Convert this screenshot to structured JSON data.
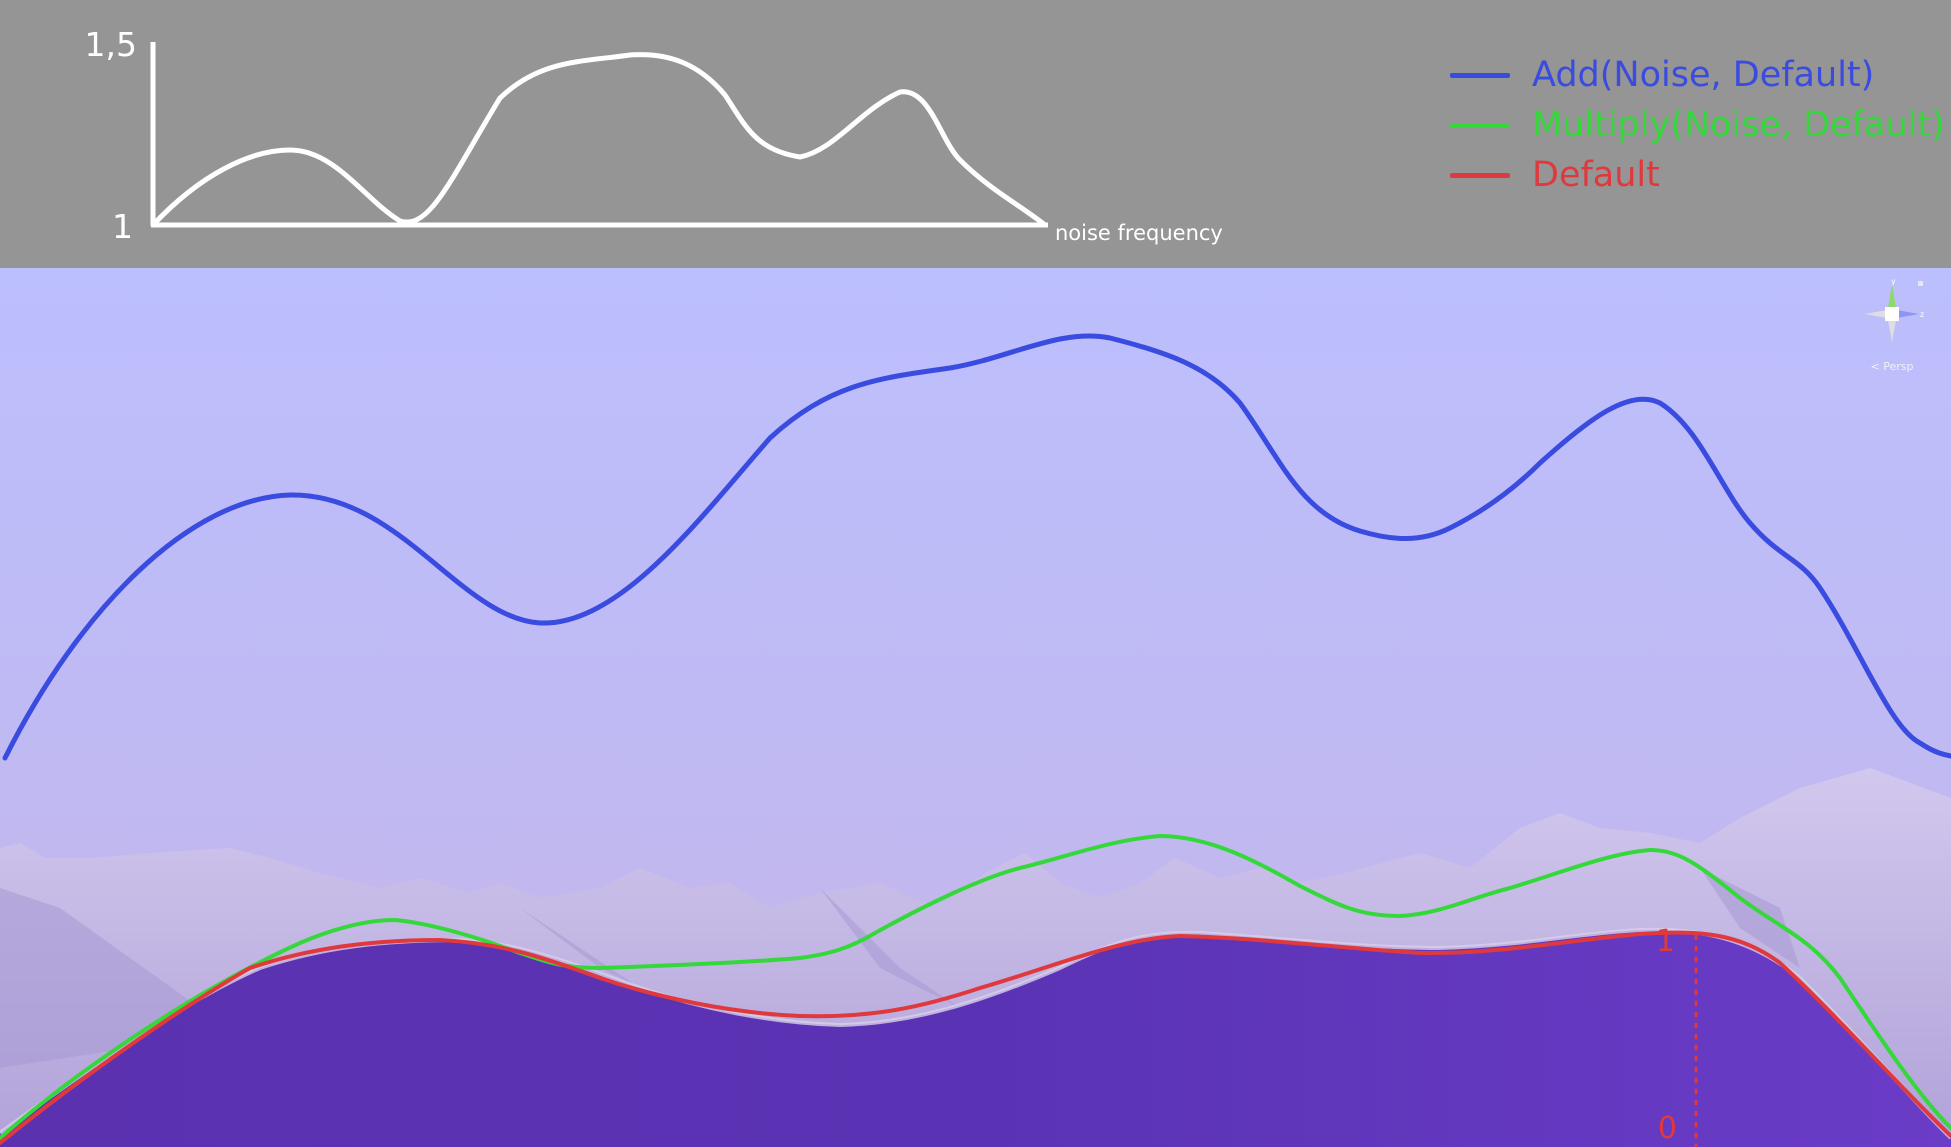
{
  "inset_chart": {
    "y_max_label": "1,5",
    "y_min_label": "1",
    "x_axis_label": "noise frequency"
  },
  "legend": [
    {
      "label": "Add(Noise, Default)",
      "color": "#3a4be0"
    },
    {
      "label": "Multiply(Noise, Default)",
      "color": "#35d83a"
    },
    {
      "label": "Default",
      "color": "#e0393d"
    }
  ],
  "height_axis": {
    "top_label": "1",
    "bottom_label": "0",
    "color": "#e0393d"
  },
  "view_gizmo": {
    "label": "< Persp",
    "axes": [
      "y",
      "z"
    ]
  },
  "colors": {
    "sky": "#bdbffc",
    "terrain": "#5e34b5",
    "mountains": "#c6b8e6"
  }
}
